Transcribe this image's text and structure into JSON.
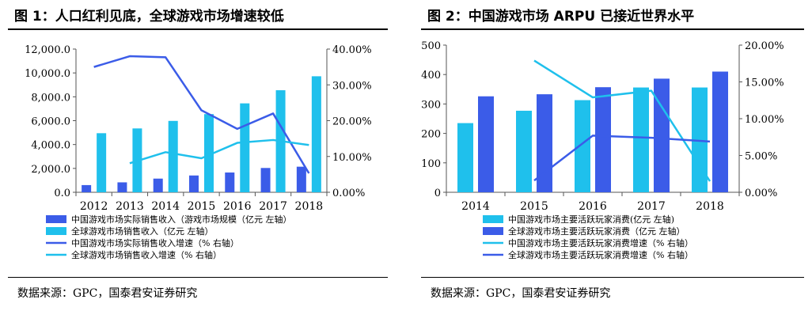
{
  "panels": [
    {
      "title": "图 1：人口红利见底，全球游戏市场增速较低",
      "source": "数据来源：GPC，国泰君安证券研究"
    },
    {
      "title": "图 2：中国游戏市场 ARPU 已接近世界水平",
      "source": "数据来源：GPC，国泰君安证券研究"
    }
  ],
  "chart_data": [
    {
      "type": "bar",
      "categories": [
        "2012",
        "2013",
        "2014",
        "2015",
        "2016",
        "2017",
        "2018"
      ],
      "ylim": [
        0,
        12000
      ],
      "y_ticks": [
        "0.0",
        "2,000.0",
        "4,000.0",
        "6,000.0",
        "8,000.0",
        "10,000.0",
        "12,000.0"
      ],
      "y2lim": [
        0,
        40
      ],
      "y2_ticks": [
        "0.00%",
        "10.00%",
        "20.00%",
        "30.00%",
        "40.00%"
      ],
      "series": [
        {
          "name": "中国游戏市场实际销售收入（游戏市场规模（亿元 左轴）",
          "kind": "bar",
          "axis": "left",
          "color": "#3b5ce8",
          "values": [
            602,
            832,
            1145,
            1407,
            1656,
            2036,
            2144
          ]
        },
        {
          "name": "全球游戏市场销售收入（亿元 左轴）",
          "kind": "bar",
          "axis": "left",
          "color": "#1fc0ec",
          "values": [
            4950,
            5350,
            5980,
            6550,
            7450,
            8550,
            9720
          ]
        },
        {
          "name": "中国游戏市场实际销售收入增速（% 右轴）",
          "kind": "line",
          "axis": "right",
          "color": "#3b5ce8",
          "values": [
            35.0,
            38.0,
            37.7,
            22.9,
            17.7,
            22.0,
            5.3
          ]
        },
        {
          "name": "全球游戏市场销售收入增速（% 右轴）",
          "kind": "line",
          "axis": "right",
          "color": "#1fc0ec",
          "values": [
            null,
            8.1,
            11.2,
            9.5,
            13.8,
            14.6,
            13.2
          ]
        }
      ]
    },
    {
      "type": "bar",
      "categories": [
        "2014",
        "2015",
        "2016",
        "2017",
        "2018"
      ],
      "ylim": [
        0,
        500
      ],
      "y_ticks": [
        "0",
        "100",
        "200",
        "300",
        "400",
        "500"
      ],
      "y2lim": [
        0,
        20
      ],
      "y2_ticks": [
        "0.00%",
        "5.00%",
        "10.00%",
        "15.00%",
        "20.00%"
      ],
      "series": [
        {
          "name": "中国游戏市场主要活跃玩家消费(亿元 左轴)",
          "kind": "bar",
          "axis": "left",
          "color": "#1fc0ec",
          "values": [
            235,
            277,
            313,
            356,
            356
          ]
        },
        {
          "name": "全球游戏市场主要活跃玩家消费（亿元 左轴）",
          "kind": "bar",
          "axis": "left",
          "color": "#3b5ce8",
          "values": [
            326,
            333,
            357,
            386,
            410
          ]
        },
        {
          "name": "中国游戏市场主要活跃玩家消费增速（% 右轴）",
          "kind": "line",
          "axis": "right",
          "color": "#1fc0ec",
          "values": [
            null,
            17.9,
            12.9,
            13.8,
            1.5
          ]
        },
        {
          "name": "全球游戏市场主要活跃玩家消费增速（% 右轴）",
          "kind": "line",
          "axis": "right",
          "color": "#3b5ce8",
          "values": [
            null,
            1.6,
            7.7,
            7.4,
            6.9
          ]
        }
      ]
    }
  ]
}
